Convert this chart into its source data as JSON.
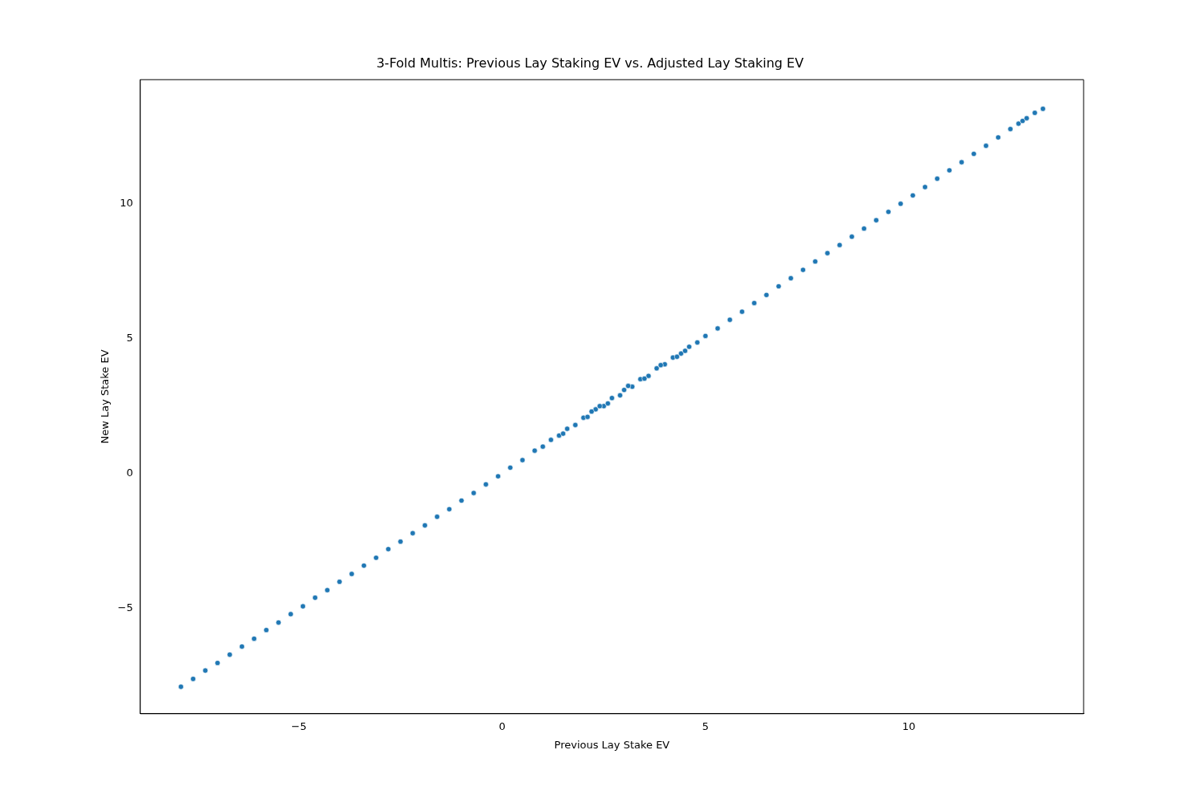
{
  "chart_data": {
    "type": "scatter",
    "title": "3-Fold Multis: Previous Lay Staking EV vs. Adjusted Lay Staking EV",
    "xlabel": "Previous Lay Stake EV",
    "ylabel": "New Lay Stake EV",
    "xlim": [
      -8.9,
      14.3
    ],
    "ylim": [
      -8.9,
      14.6
    ],
    "xticks": [
      -5,
      0,
      5,
      10
    ],
    "yticks": [
      -5,
      0,
      5,
      10
    ],
    "grid": false,
    "legend": false,
    "marker": "circle",
    "series": [
      {
        "color": "#1f77b4",
        "x": [
          -7.9,
          -7.6,
          -7.3,
          -7.0,
          -6.7,
          -6.4,
          -6.1,
          -5.8,
          -5.5,
          -5.2,
          -4.9,
          -4.6,
          -4.3,
          -4.0,
          -3.7,
          -3.4,
          -3.1,
          -2.8,
          -2.5,
          -2.2,
          -1.9,
          -1.6,
          -1.3,
          -1.0,
          -0.7,
          -0.4,
          -0.1,
          0.2,
          0.5,
          0.8,
          1.0,
          1.2,
          1.4,
          1.6,
          1.8,
          2.0,
          2.1,
          2.3,
          2.5,
          2.7,
          2.9,
          3.0,
          3.2,
          3.4,
          3.6,
          3.8,
          4.0,
          4.2,
          4.4,
          4.6,
          4.8,
          5.0,
          5.3,
          5.6,
          5.9,
          6.2,
          6.5,
          6.8,
          7.1,
          7.4,
          7.7,
          8.0,
          8.3,
          8.6,
          8.9,
          9.2,
          9.5,
          9.8,
          10.1,
          10.4,
          10.7,
          11.0,
          11.3,
          11.6,
          11.9,
          12.2,
          12.5,
          12.7,
          12.8,
          12.9,
          13.1,
          13.3,
          1.5,
          2.2,
          2.6,
          3.1,
          3.5,
          3.9,
          4.3,
          2.4,
          4.5
        ],
        "values": [
          -7.9,
          -7.61,
          -7.3,
          -7.02,
          -6.71,
          -6.41,
          -6.12,
          -5.8,
          -5.52,
          -5.21,
          -4.92,
          -4.6,
          -4.32,
          -4.01,
          -3.72,
          -3.41,
          -3.12,
          -2.8,
          -2.52,
          -2.21,
          -1.92,
          -1.6,
          -1.32,
          -1.0,
          -0.72,
          -0.4,
          -0.1,
          0.22,
          0.5,
          0.85,
          1.0,
          1.25,
          1.41,
          1.66,
          1.8,
          2.07,
          2.1,
          2.38,
          2.5,
          2.8,
          2.9,
          3.1,
          3.22,
          3.5,
          3.62,
          3.9,
          4.05,
          4.3,
          4.45,
          4.7,
          4.86,
          5.1,
          5.38,
          5.7,
          6.0,
          6.32,
          6.62,
          6.94,
          7.24,
          7.55,
          7.86,
          8.17,
          8.47,
          8.78,
          9.08,
          9.39,
          9.7,
          10.0,
          10.31,
          10.62,
          10.93,
          11.24,
          11.54,
          11.85,
          12.15,
          12.46,
          12.77,
          12.97,
          13.07,
          13.17,
          13.37,
          13.52,
          1.48,
          2.3,
          2.6,
          3.25,
          3.52,
          4.02,
          4.33,
          2.5,
          4.55
        ]
      }
    ]
  }
}
